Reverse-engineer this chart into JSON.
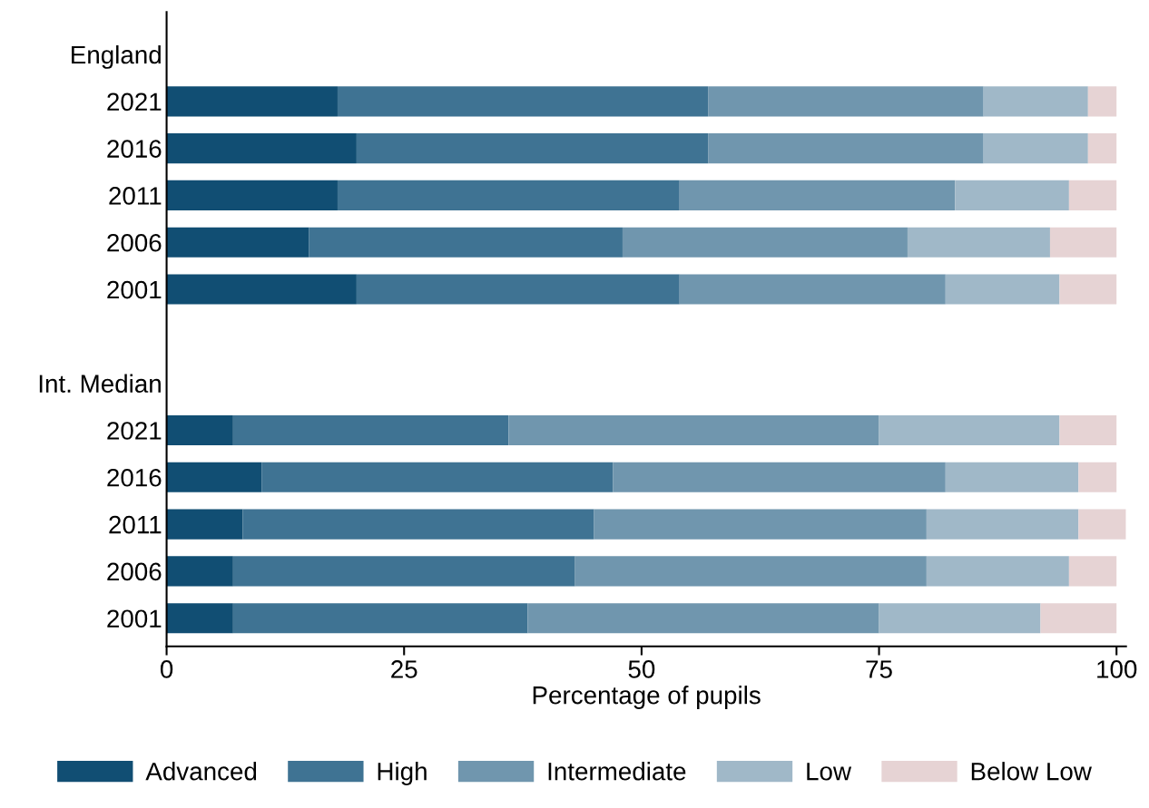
{
  "chart_data": {
    "type": "bar",
    "orientation": "horizontal",
    "stacked": true,
    "xlabel": "Percentage of pupils",
    "categories": [
      "England",
      "2021",
      "2016",
      "2011",
      "2006",
      "2001",
      null,
      "Int. Median",
      "2021",
      "2016",
      "2011",
      "2006",
      "2001"
    ],
    "series": [
      {
        "name": "Advanced",
        "color": "#114e73",
        "values": [
          null,
          18,
          20,
          18,
          15,
          20,
          null,
          null,
          7,
          10,
          8,
          7,
          7
        ]
      },
      {
        "name": "High",
        "color": "#3f7393",
        "values": [
          null,
          39,
          37,
          36,
          33,
          34,
          null,
          null,
          29,
          37,
          37,
          36,
          31
        ]
      },
      {
        "name": "Intermediate",
        "color": "#7096ae",
        "values": [
          null,
          29,
          29,
          29,
          30,
          28,
          null,
          null,
          39,
          35,
          35,
          37,
          37
        ]
      },
      {
        "name": "Low",
        "color": "#a0b8c8",
        "values": [
          null,
          11,
          11,
          12,
          15,
          12,
          null,
          null,
          19,
          14,
          16,
          15,
          17
        ]
      },
      {
        "name": "Below Low",
        "color": "#e6d3d4",
        "values": [
          null,
          3,
          3,
          5,
          7,
          6,
          null,
          null,
          6,
          4,
          5,
          5,
          8
        ]
      }
    ],
    "xlim": [
      0,
      101
    ],
    "xticks": [
      0,
      25,
      50,
      75,
      100
    ],
    "grid": false,
    "legend": "bottom"
  }
}
